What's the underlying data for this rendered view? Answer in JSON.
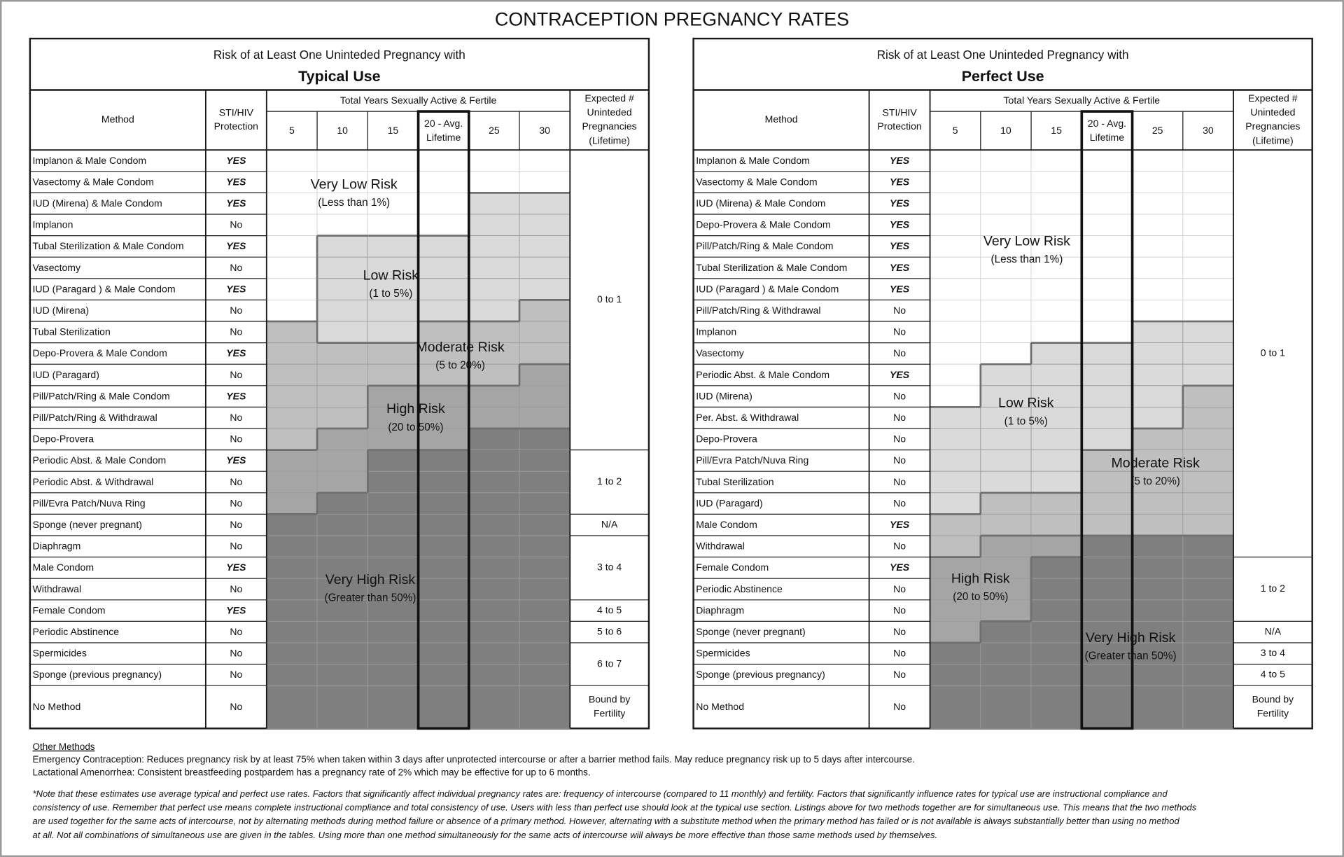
{
  "title": "CONTRACEPTION PREGNANCY RATES",
  "tables": [
    {
      "heading": "Risk of at Least One Uninteded Pregnancy with",
      "use": "Typical Use",
      "method_header": [
        "Method"
      ],
      "protection_header": [
        "STI/HIV",
        "Protection"
      ],
      "years_header": "Total Years Sexually Active & Fertile",
      "year_columns": [
        [
          "5"
        ],
        [
          "10"
        ],
        [
          "15"
        ],
        [
          "20 - Avg.",
          "Lifetime"
        ],
        [
          "25"
        ],
        [
          "30"
        ]
      ],
      "expected_header": [
        "Expected #",
        "Uninteded",
        "Pregnancies",
        "(Lifetime)"
      ],
      "rows": [
        {
          "method": "Implanon & Male Condom",
          "protection": "YES"
        },
        {
          "method": "Vasectomy & Male Condom",
          "protection": "YES"
        },
        {
          "method": "IUD (Mirena) & Male Condom",
          "protection": "YES"
        },
        {
          "method": "Implanon",
          "protection": "No"
        },
        {
          "method": "Tubal Sterilization & Male Condom",
          "protection": "YES"
        },
        {
          "method": "Vasectomy",
          "protection": "No"
        },
        {
          "method": "IUD (Paragard ) & Male Condom",
          "protection": "YES"
        },
        {
          "method": "IUD (Mirena)",
          "protection": "No"
        },
        {
          "method": "Tubal Sterilization",
          "protection": "No"
        },
        {
          "method": "Depo-Provera & Male Condom",
          "protection": "YES"
        },
        {
          "method": "IUD (Paragard)",
          "protection": "No"
        },
        {
          "method": "Pill/Patch/Ring & Male Condom",
          "protection": "YES"
        },
        {
          "method": "Pill/Patch/Ring & Withdrawal",
          "protection": "No"
        },
        {
          "method": "Depo-Provera",
          "protection": "No"
        },
        {
          "method": "Periodic Abst. & Male Condom",
          "protection": "YES"
        },
        {
          "method": "Periodic Abst. & Withdrawal",
          "protection": "No"
        },
        {
          "method": "Pill/Evra Patch/Nuva Ring",
          "protection": "No"
        },
        {
          "method": "Sponge (never pregnant)",
          "protection": "No"
        },
        {
          "method": "Diaphragm",
          "protection": "No"
        },
        {
          "method": "Male Condom",
          "protection": "YES"
        },
        {
          "method": "Withdrawal",
          "protection": "No"
        },
        {
          "method": "Female Condom",
          "protection": "YES"
        },
        {
          "method": "Periodic Abstinence",
          "protection": "No"
        },
        {
          "method": "Spermicides",
          "protection": "No"
        },
        {
          "method": "Sponge (previous pregnancy)",
          "protection": "No"
        },
        {
          "method": "No Method",
          "protection": "No"
        }
      ],
      "expected": [
        {
          "text": [
            "0 to 1"
          ],
          "span": 14
        },
        {
          "text": [
            "1 to 2"
          ],
          "span": 3
        },
        {
          "text": [
            "N/A"
          ],
          "span": 1
        },
        {
          "text": [
            "3 to 4"
          ],
          "span": 3
        },
        {
          "text": [
            "4 to 5"
          ],
          "span": 1
        },
        {
          "text": [
            "5 to 6"
          ],
          "span": 1
        },
        {
          "text": [
            "6 to 7"
          ],
          "span": 2
        },
        {
          "text": [
            "Bound by",
            "Fertility"
          ],
          "span": 1
        }
      ],
      "zones": [
        {
          "name": "Very Low Risk",
          "range": "(Less than 1%)"
        },
        {
          "name": "Low Risk",
          "range": "(1 to 5%)"
        },
        {
          "name": "Moderate Risk",
          "range": "(5 to 20%)"
        },
        {
          "name": "High Risk",
          "range": "(20 to 50%)"
        },
        {
          "name": "Very High Risk",
          "range": "(Greater than 50%)"
        }
      ]
    },
    {
      "heading": "Risk of at Least One Uninteded Pregnancy with",
      "use": "Perfect Use",
      "method_header": [
        "Method"
      ],
      "protection_header": [
        "STI/HIV",
        "Protection"
      ],
      "years_header": "Total Years Sexually Active & Fertile",
      "year_columns": [
        [
          "5"
        ],
        [
          "10"
        ],
        [
          "15"
        ],
        [
          "20 - Avg.",
          "Lifetime"
        ],
        [
          "25"
        ],
        [
          "30"
        ]
      ],
      "expected_header": [
        "Expected #",
        "Uninteded",
        "Pregnancies",
        "(Lifetime)"
      ],
      "rows": [
        {
          "method": "Implanon & Male Condom",
          "protection": "YES"
        },
        {
          "method": "Vasectomy & Male Condom",
          "protection": "YES"
        },
        {
          "method": "IUD (Mirena) & Male Condom",
          "protection": "YES"
        },
        {
          "method": "Depo-Provera & Male Condom",
          "protection": "YES"
        },
        {
          "method": "Pill/Patch/Ring & Male Condom",
          "protection": "YES"
        },
        {
          "method": "Tubal Sterilization & Male Condom",
          "protection": "YES"
        },
        {
          "method": "IUD (Paragard ) & Male Condom",
          "protection": "YES"
        },
        {
          "method": "Pill/Patch/Ring & Withdrawal",
          "protection": "No"
        },
        {
          "method": "Implanon",
          "protection": "No"
        },
        {
          "method": "Vasectomy",
          "protection": "No"
        },
        {
          "method": "Periodic Abst. & Male Condom",
          "protection": "YES"
        },
        {
          "method": "IUD (Mirena)",
          "protection": "No"
        },
        {
          "method": "Per. Abst. & Withdrawal",
          "protection": "No"
        },
        {
          "method": "Depo-Provera",
          "protection": "No"
        },
        {
          "method": "Pill/Evra Patch/Nuva Ring",
          "protection": "No"
        },
        {
          "method": "Tubal Sterilization",
          "protection": "No"
        },
        {
          "method": "IUD (Paragard)",
          "protection": "No"
        },
        {
          "method": "Male Condom",
          "protection": "YES"
        },
        {
          "method": "Withdrawal",
          "protection": "No"
        },
        {
          "method": "Female Condom",
          "protection": "YES"
        },
        {
          "method": "Periodic Abstinence",
          "protection": "No"
        },
        {
          "method": "Diaphragm",
          "protection": "No"
        },
        {
          "method": "Sponge (never pregnant)",
          "protection": "No"
        },
        {
          "method": "Spermicides",
          "protection": "No"
        },
        {
          "method": "Sponge (previous pregnancy)",
          "protection": "No"
        },
        {
          "method": "No Method",
          "protection": "No"
        }
      ],
      "expected": [
        {
          "text": [
            "0 to 1"
          ],
          "span": 19
        },
        {
          "text": [
            "1 to 2"
          ],
          "span": 3
        },
        {
          "text": [
            "N/A"
          ],
          "span": 1
        },
        {
          "text": [
            "3 to 4"
          ],
          "span": 1
        },
        {
          "text": [
            "4 to 5"
          ],
          "span": 1
        },
        {
          "text": [
            "Bound by",
            "Fertility"
          ],
          "span": 1
        }
      ],
      "zones": [
        {
          "name": "Very Low Risk",
          "range": "(Less than 1%)"
        },
        {
          "name": "Low Risk",
          "range": "(1 to 5%)"
        },
        {
          "name": "Moderate Risk",
          "range": "(5 to 20%)"
        },
        {
          "name": "High Risk",
          "range": "(20 to 50%)"
        },
        {
          "name": "Very High Risk",
          "range": "(Greater than 50%)"
        }
      ]
    }
  ],
  "other_methods": {
    "heading": "Other Methods",
    "lines": [
      "Emergency Contraception: Reduces pregnancy risk by at least 75% when taken within 3 days after unprotected intercourse or after a barrier method fails. May reduce pregnancy risk up to 5 days after intercourse.",
      "Lactational Amenorrhea: Consistent breastfeeding postpardem has a pregnancy rate of 2% which may be effective for up to 6 months."
    ]
  },
  "note": [
    "*Note that these estimates use average typical and perfect use rates. Factors  that significantly affect individual pregnancy rates are: frequency of intercourse (compared to 11 monthly) and fertility. Factors that significantly influence rates for typical use are instructional compliance and",
    "consistency of use. Remember that perfect use means complete instructional compliance and total consistency of use. Users with less than perfect use should look at the typical use section. Listings above for two methods together are for simultaneous use. This means that the two methods",
    "are used together for the same acts of intercourse, not by alternating methods during method failure or absence of a primary method. However, alternating with a substitute method when the primary method has failed or is not available is always substantially better than using no method",
    "at all. Not all combinations of simultaneous use are given in the tables. Using more than one method simultaneously for the same acts of intercourse will always be more effective than those same methods used by themselves."
  ]
}
